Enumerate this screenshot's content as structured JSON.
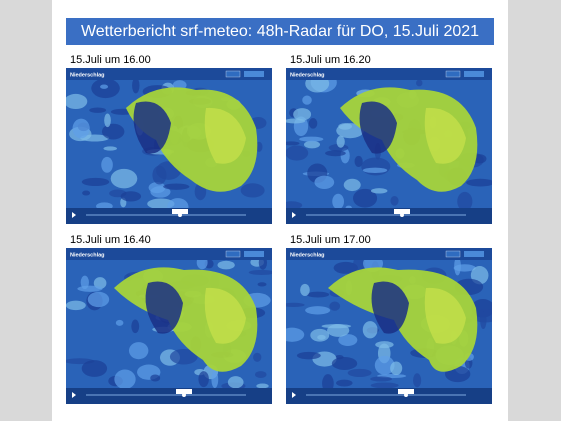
{
  "header": {
    "title": "Wetterbericht srf-meteo: 48h-Radar für DO, 15.Juli 2021"
  },
  "panels": [
    {
      "caption": "15.Juli um 16.00",
      "map_title": "Niederschlag"
    },
    {
      "caption": "15.Juli um 16.20",
      "map_title": "Niederschlag"
    },
    {
      "caption": "15.Juli um 16.40",
      "map_title": "Niederschlag"
    },
    {
      "caption": "15.Juli um 17.00",
      "map_title": "Niederschlag"
    }
  ]
}
